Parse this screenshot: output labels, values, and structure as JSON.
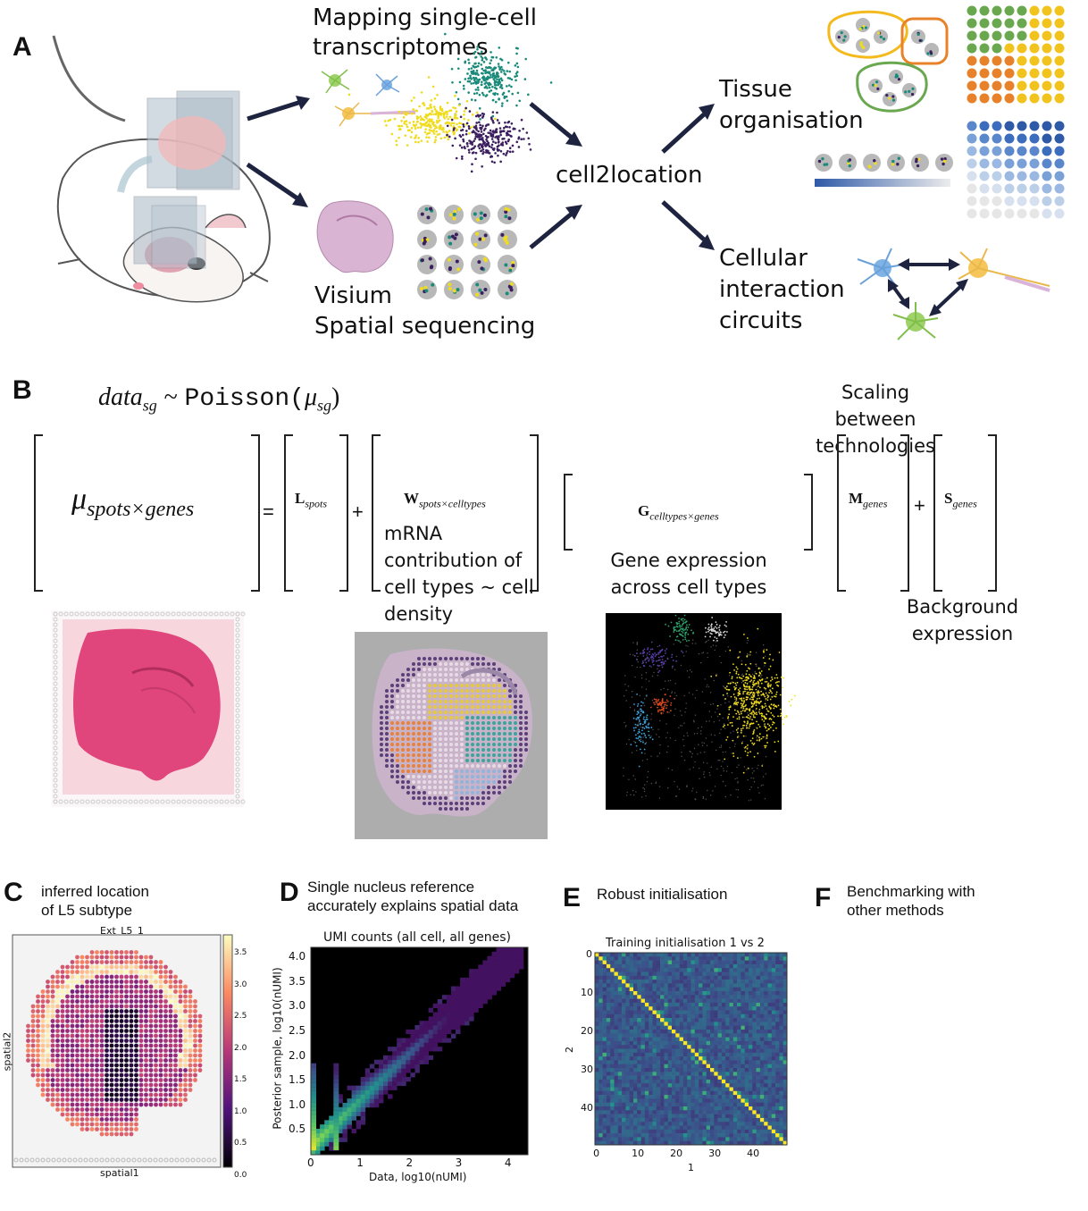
{
  "panels": {
    "A": {
      "letter": "A",
      "mapping_title_line1": "Mapping single-cell",
      "mapping_title_line2": "transcriptomes",
      "visium_line1": "Visium",
      "visium_line2": "Spatial sequencing",
      "center_label": "cell2location",
      "tissue_line1": "Tissue",
      "tissue_line2": "organisation",
      "circuits_line1": "Cellular",
      "circuits_line2": "interaction",
      "circuits_line3": "circuits"
    },
    "B": {
      "letter": "B",
      "likelihood_lhs": "data",
      "likelihood_lhs_sub": "sg",
      "likelihood_sim": "~",
      "likelihood_dist": "Poisson(",
      "likelihood_mu": "μ",
      "likelihood_mu_sub": "sg",
      "likelihood_close": ")",
      "mu_symbol": "μ",
      "mu_sub": "spots×genes",
      "equals": "=",
      "plus1": "+",
      "plus2": "+",
      "L_symbol": "L",
      "L_sub": "spots",
      "W_symbol": "W",
      "W_sub": "spots×celltypes",
      "W_note_line1": "mRNA",
      "W_note_line2": "contribution of",
      "W_note_line3": "cell types ~ cell",
      "W_note_line4": "density",
      "G_symbol": "G",
      "G_sub": "celltypes×genes",
      "G_note_line1": "Gene expression",
      "G_note_line2": "across cell types",
      "M_title_line1": "Scaling between",
      "M_title_line2": "technologies",
      "M_symbol": "M",
      "M_sub": "genes",
      "S_symbol": "S",
      "S_sub": "genes",
      "S_note_line1": "Background",
      "S_note_line2": "expression"
    },
    "C": {
      "letter": "C",
      "title_line1": "inferred location",
      "title_line2": "of L5 subtype",
      "plot_title": "Ext_L5_1",
      "xlabel": "spatial1",
      "ylabel": "spatial2",
      "colorbar_ticks": [
        "3.5",
        "3.0",
        "2.5",
        "2.0",
        "1.5",
        "1.0",
        "0.5",
        "0.0"
      ]
    },
    "D": {
      "letter": "D",
      "title_line1": "Single nucleus reference",
      "title_line2": "accurately explains spatial data",
      "plot_title": "UMI counts (all cell, all genes)",
      "xlabel": "Data, log10(nUMI)",
      "ylabel": "Posterior sample, log10(nUMI)",
      "x_ticks": [
        "0",
        "1",
        "2",
        "3",
        "4"
      ],
      "y_ticks": [
        "4.0",
        "3.5",
        "3.0",
        "2.5",
        "2.0",
        "1.5",
        "1.0",
        "0.5"
      ]
    },
    "E": {
      "letter": "E",
      "title": "Robust initialisation",
      "plot_title": "Training initialisation 1 vs 2",
      "xlabel": "1",
      "ylabel": "2",
      "x_ticks": [
        "0",
        "10",
        "20",
        "30",
        "40"
      ],
      "y_ticks": [
        "0",
        "10",
        "20",
        "30",
        "40"
      ]
    },
    "F": {
      "letter": "F",
      "title_line1": "Benchmarking with",
      "title_line2": "other methods"
    }
  },
  "chart_data": [
    {
      "type": "heatmap",
      "title": "UMI counts (all cell, all genes)",
      "xlabel": "Data, log10(nUMI)",
      "ylabel": "Posterior sample, log10(nUMI)",
      "xlim": [
        0,
        4.4
      ],
      "ylim": [
        0,
        4.2
      ],
      "x_ticks": [
        0,
        1,
        2,
        3,
        4
      ],
      "y_ticks": [
        0.5,
        1.0,
        1.5,
        2.0,
        2.5,
        3.0,
        3.5,
        4.0
      ],
      "colormap": "viridis"
    },
    {
      "type": "heatmap",
      "title": "Training initialisation 1 vs 2",
      "xlabel": "1",
      "ylabel": "2",
      "size": 50,
      "x_ticks": [
        0,
        10,
        20,
        30,
        40
      ],
      "y_ticks": [
        0,
        10,
        20,
        30,
        40
      ],
      "colormap": "viridis"
    }
  ],
  "colors": {
    "arrow": "#1e2440",
    "cluster_green": "#1a8a7a",
    "cluster_yellow": "#f0dc1e",
    "cluster_purple": "#3b1f5e",
    "spot_grey": "#b8b8b8",
    "tissue_pink": "#d47aa8",
    "orange": "#e8822a",
    "green": "#6aa84f",
    "yellow": "#f3c31d",
    "blue": "#2f5aa8"
  }
}
